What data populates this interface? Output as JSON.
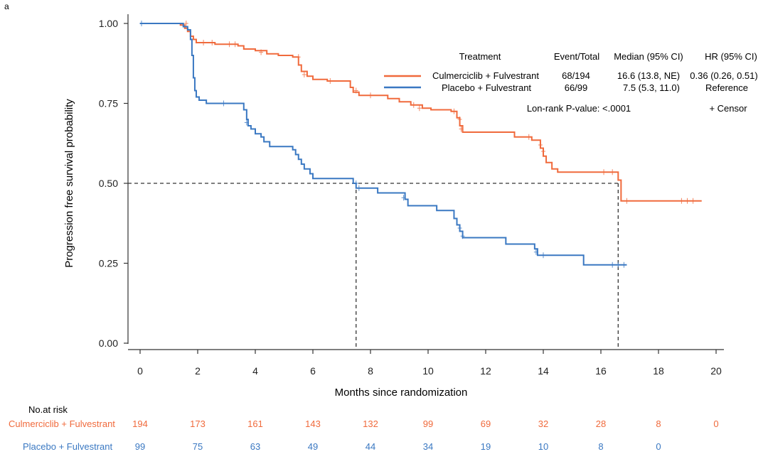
{
  "panel_label": "a",
  "colors": {
    "culmerciclib": "#f06a3c",
    "placebo": "#3a78c2",
    "axis": "#333333"
  },
  "chart_data": {
    "type": "line",
    "subtype": "kaplan-meier",
    "xlabel": "Months since randomization",
    "ylabel": "Progression free survival probability",
    "xlim": [
      0,
      20
    ],
    "ylim": [
      0,
      1
    ],
    "xticks": [
      "0",
      "2",
      "4",
      "6",
      "8",
      "10",
      "12",
      "14",
      "16",
      "18",
      "20"
    ],
    "yticks": [
      "0.00",
      "0.25",
      "0.50",
      "0.75",
      "1.00"
    ],
    "median_reference_line": 0.5,
    "medians": [
      7.5,
      16.6
    ],
    "series": [
      {
        "name": "Culmerciclib + Fulvestrant",
        "color": "#f06a3c",
        "steps": [
          [
            0,
            1.0
          ],
          [
            1.4,
            0.995
          ],
          [
            1.55,
            0.985
          ],
          [
            1.65,
            0.975
          ],
          [
            1.75,
            0.96
          ],
          [
            1.85,
            0.95
          ],
          [
            1.95,
            0.94
          ],
          [
            2.6,
            0.935
          ],
          [
            3.4,
            0.93
          ],
          [
            3.6,
            0.92
          ],
          [
            4.0,
            0.915
          ],
          [
            4.4,
            0.905
          ],
          [
            4.8,
            0.9
          ],
          [
            5.3,
            0.895
          ],
          [
            5.5,
            0.87
          ],
          [
            5.6,
            0.85
          ],
          [
            5.8,
            0.835
          ],
          [
            6.0,
            0.825
          ],
          [
            6.5,
            0.82
          ],
          [
            7.3,
            0.8
          ],
          [
            7.4,
            0.785
          ],
          [
            7.6,
            0.775
          ],
          [
            8.6,
            0.765
          ],
          [
            9.0,
            0.755
          ],
          [
            9.4,
            0.745
          ],
          [
            9.8,
            0.735
          ],
          [
            10.1,
            0.73
          ],
          [
            10.8,
            0.725
          ],
          [
            11.0,
            0.705
          ],
          [
            11.1,
            0.68
          ],
          [
            11.2,
            0.66
          ],
          [
            13.0,
            0.645
          ],
          [
            13.6,
            0.635
          ],
          [
            13.9,
            0.61
          ],
          [
            14.0,
            0.585
          ],
          [
            14.1,
            0.565
          ],
          [
            14.3,
            0.545
          ],
          [
            14.5,
            0.535
          ],
          [
            16.6,
            0.51
          ],
          [
            16.7,
            0.445
          ]
        ],
        "end": 19.5,
        "censors": [
          [
            1.6,
            1.0
          ],
          [
            2.2,
            0.94
          ],
          [
            2.5,
            0.94
          ],
          [
            3.1,
            0.935
          ],
          [
            3.3,
            0.935
          ],
          [
            4.2,
            0.91
          ],
          [
            5.5,
            0.895
          ],
          [
            5.7,
            0.84
          ],
          [
            6.6,
            0.82
          ],
          [
            7.5,
            0.79
          ],
          [
            8.0,
            0.775
          ],
          [
            9.5,
            0.745
          ],
          [
            9.7,
            0.735
          ],
          [
            10.9,
            0.725
          ],
          [
            11.1,
            0.7
          ],
          [
            11.15,
            0.67
          ],
          [
            13.5,
            0.645
          ],
          [
            13.9,
            0.62
          ],
          [
            14.0,
            0.6
          ],
          [
            16.1,
            0.535
          ],
          [
            16.4,
            0.535
          ],
          [
            16.9,
            0.445
          ],
          [
            18.8,
            0.445
          ],
          [
            19.0,
            0.445
          ],
          [
            19.2,
            0.445
          ]
        ]
      },
      {
        "name": "Placebo + Fulvestrant",
        "color": "#3a78c2",
        "steps": [
          [
            0,
            1.0
          ],
          [
            1.5,
            0.99
          ],
          [
            1.65,
            0.98
          ],
          [
            1.75,
            0.95
          ],
          [
            1.8,
            0.9
          ],
          [
            1.85,
            0.83
          ],
          [
            1.9,
            0.79
          ],
          [
            1.95,
            0.77
          ],
          [
            2.05,
            0.76
          ],
          [
            2.3,
            0.75
          ],
          [
            3.6,
            0.73
          ],
          [
            3.7,
            0.7
          ],
          [
            3.75,
            0.68
          ],
          [
            3.85,
            0.67
          ],
          [
            4.0,
            0.655
          ],
          [
            4.2,
            0.645
          ],
          [
            4.3,
            0.63
          ],
          [
            4.5,
            0.615
          ],
          [
            5.3,
            0.605
          ],
          [
            5.4,
            0.59
          ],
          [
            5.5,
            0.575
          ],
          [
            5.6,
            0.56
          ],
          [
            5.7,
            0.545
          ],
          [
            5.9,
            0.53
          ],
          [
            6.0,
            0.515
          ],
          [
            7.4,
            0.5
          ],
          [
            7.5,
            0.485
          ],
          [
            8.25,
            0.47
          ],
          [
            9.2,
            0.45
          ],
          [
            9.3,
            0.43
          ],
          [
            10.3,
            0.415
          ],
          [
            10.9,
            0.39
          ],
          [
            11.0,
            0.37
          ],
          [
            11.1,
            0.35
          ],
          [
            11.2,
            0.33
          ],
          [
            12.7,
            0.31
          ],
          [
            13.7,
            0.295
          ],
          [
            13.8,
            0.275
          ],
          [
            15.4,
            0.245
          ]
        ],
        "end": 16.9,
        "censors": [
          [
            0.05,
            1.0
          ],
          [
            2.9,
            0.75
          ],
          [
            3.7,
            0.69
          ],
          [
            7.5,
            0.5
          ],
          [
            7.6,
            0.485
          ],
          [
            9.15,
            0.455
          ],
          [
            11.1,
            0.36
          ],
          [
            11.2,
            0.335
          ],
          [
            13.75,
            0.285
          ],
          [
            14.0,
            0.275
          ],
          [
            16.4,
            0.245
          ],
          [
            16.6,
            0.245
          ],
          [
            16.8,
            0.245
          ]
        ]
      }
    ],
    "legend": {
      "placement": "top-right",
      "headers": [
        "Treatment",
        "Event/Total",
        "Median (95% CI)",
        "HR (95% CI)"
      ],
      "rows": [
        {
          "treatment": "Culmerciclib + Fulvestrant",
          "event_total": "68/194",
          "median": "16.6 (13.8, NE)",
          "hr": "0.36 (0.26, 0.51)"
        },
        {
          "treatment": "Placebo + Fulvestrant",
          "event_total": "66/99",
          "median": "7.5 (5.3, 11.0)",
          "hr": "Reference"
        }
      ],
      "pvalue": "Lon-rank P-value: <.0001",
      "censor_note": "+ Censor"
    },
    "risk_table": {
      "title": "No.at risk",
      "rows": [
        {
          "label": "Culmerciclib + Fulvestrant",
          "values": [
            "194",
            "173",
            "161",
            "143",
            "132",
            "99",
            "69",
            "32",
            "28",
            "8",
            "0"
          ]
        },
        {
          "label": "Placebo + Fulvestrant",
          "values": [
            "99",
            "75",
            "63",
            "49",
            "44",
            "34",
            "19",
            "10",
            "8",
            "0"
          ]
        }
      ]
    }
  }
}
